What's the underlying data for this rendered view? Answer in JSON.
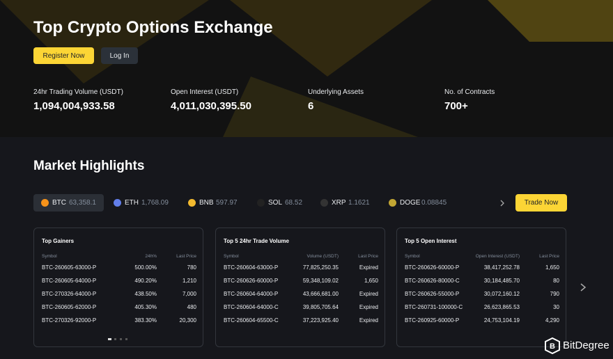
{
  "header": {
    "title": "Top Crypto Options Exchange",
    "buttons": [
      "Register Now",
      "Log In"
    ]
  },
  "stats": [
    {
      "label": "24hr Trading Volume (USDT)",
      "value": "1,094,004,933.58"
    },
    {
      "label": "Open Interest (USDT)",
      "value": "4,011,030,395.50"
    },
    {
      "label": "Underlying Assets",
      "value": "6"
    },
    {
      "label": "No. of Contracts",
      "value": "700+"
    }
  ],
  "market": {
    "title": "Market Highlights",
    "tickers": [
      {
        "symbol": "BTC",
        "price": "63,358.1"
      },
      {
        "symbol": "ETH",
        "price": "1,768.09"
      },
      {
        "symbol": "BNB",
        "price": "597.97"
      },
      {
        "symbol": "SOL",
        "price": "68.52"
      },
      {
        "symbol": "XRP",
        "price": "1.1621"
      },
      {
        "symbol": "DOGE",
        "price": "0.08845"
      }
    ],
    "button": "Trade Now"
  },
  "panels": [
    {
      "title": "Top Gainers",
      "columns": [
        "Symbol",
        "24h%",
        "Last Price"
      ],
      "rows": [
        [
          "BTC-260605-63000-P",
          "500.00%",
          "780"
        ],
        [
          "BTC-260605-64000-P",
          "490.20%",
          "1,210"
        ],
        [
          "BTC-270326-64000-P",
          "438.50%",
          "7,000"
        ],
        [
          "BTC-260605-62000-P",
          "405.30%",
          "480"
        ],
        [
          "BTC-270326-92000-P",
          "383.30%",
          "20,300"
        ]
      ]
    },
    {
      "title": "Top 5 24hr Trade Volume",
      "columns": [
        "Symbol",
        "Volume (USDT)",
        "Last Price"
      ],
      "rows": [
        [
          "BTC-260604-63000-P",
          "77,825,250.35",
          "Expired"
        ],
        [
          "BTC-260626-60000-P",
          "59,348,109.02",
          "1,650"
        ],
        [
          "BTC-260604-64000-P",
          "43,666,681.00",
          "Expired"
        ],
        [
          "BTC-260604-64000-C",
          "39,805,705.64",
          "Expired"
        ],
        [
          "BTC-260604-65500-C",
          "37,223,925.40",
          "Expired"
        ]
      ]
    },
    {
      "title": "Top 5 Open Interest",
      "columns": [
        "Symbol",
        "Open Interest (USDT)",
        "Last Price"
      ],
      "rows": [
        [
          "BTC-260626-60000-P",
          "38,417,252.78",
          "1,650"
        ],
        [
          "BTC-260626-80000-C",
          "30,184,485.70",
          "80"
        ],
        [
          "BTC-260626-55000-P",
          "30,072,160.12",
          "790"
        ],
        [
          "BTC-260731-100000-C",
          "26,623,865.53",
          "30"
        ],
        [
          "BTC-260925-60000-P",
          "24,753,104.19",
          "4,290"
        ]
      ]
    }
  ],
  "watermark": "BitDegree"
}
